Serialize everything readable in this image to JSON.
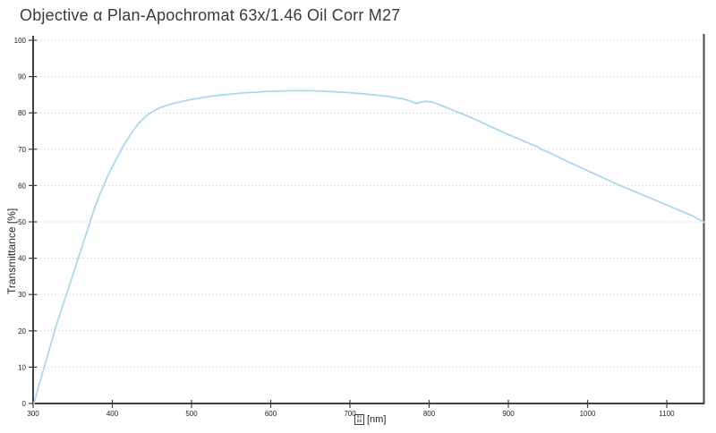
{
  "title": "Objective α Plan-Apochromat 63x/1.46 Oil Corr M27",
  "colors": {
    "background": "#ffffff",
    "title_text": "#3a3a3a",
    "axis": "#3f3f3f",
    "right_border": "#4a4a4a",
    "grid": "#c3c3c3",
    "tick_text": "#222222",
    "curve": "#a9d8f0"
  },
  "chart_data": {
    "type": "line",
    "title": "Objective α Plan-Apochromat 63x/1.46 Oil Corr M27",
    "ylabel": "Transmittance [%]",
    "xlabel_unit": "[nm]",
    "xlabel_glyph": {
      "type": "missing-glyph-box",
      "hex_rows": [
        "03",
        "BB"
      ],
      "unicode": "U+03BB"
    },
    "xlim": [
      300,
      1150
    ],
    "ylim": [
      0,
      100
    ],
    "x_ticks": [
      300,
      400,
      500,
      600,
      700,
      800,
      900,
      1000,
      1100
    ],
    "y_ticks": [
      0,
      10,
      20,
      30,
      40,
      50,
      60,
      70,
      80,
      90,
      100
    ],
    "grid": "horizontal-dotted",
    "legend": "none",
    "series": [
      {
        "name": "transmittance",
        "color": "#a9d8f0",
        "points": [
          [
            301,
            0
          ],
          [
            306,
            4
          ],
          [
            312,
            8.5
          ],
          [
            318,
            13
          ],
          [
            324,
            17.5
          ],
          [
            330,
            22
          ],
          [
            336,
            26
          ],
          [
            342,
            30
          ],
          [
            348,
            34
          ],
          [
            354,
            38
          ],
          [
            360,
            42
          ],
          [
            366,
            46
          ],
          [
            372,
            50
          ],
          [
            378,
            54
          ],
          [
            384,
            57.5
          ],
          [
            390,
            60.5
          ],
          [
            396,
            63.5
          ],
          [
            402,
            66
          ],
          [
            408,
            68.5
          ],
          [
            414,
            71
          ],
          [
            420,
            73
          ],
          [
            426,
            75
          ],
          [
            432,
            76.8
          ],
          [
            438,
            78.2
          ],
          [
            444,
            79.4
          ],
          [
            450,
            80.3
          ],
          [
            458,
            81.2
          ],
          [
            466,
            81.9
          ],
          [
            475,
            82.5
          ],
          [
            485,
            83
          ],
          [
            495,
            83.5
          ],
          [
            508,
            84
          ],
          [
            522,
            84.5
          ],
          [
            536,
            84.9
          ],
          [
            550,
            85.2
          ],
          [
            565,
            85.5
          ],
          [
            580,
            85.7
          ],
          [
            595,
            85.9
          ],
          [
            610,
            86
          ],
          [
            628,
            86.1
          ],
          [
            648,
            86.1
          ],
          [
            665,
            86
          ],
          [
            682,
            85.8
          ],
          [
            698,
            85.6
          ],
          [
            714,
            85.3
          ],
          [
            728,
            85
          ],
          [
            742,
            84.7
          ],
          [
            755,
            84.3
          ],
          [
            766,
            83.9
          ],
          [
            774,
            83.4
          ],
          [
            780,
            82.9
          ],
          [
            785,
            82.6
          ],
          [
            790,
            83
          ],
          [
            796,
            83.2
          ],
          [
            802,
            83.1
          ],
          [
            809,
            82.6
          ],
          [
            817,
            81.9
          ],
          [
            825,
            81.2
          ],
          [
            833,
            80.5
          ],
          [
            841,
            79.8
          ],
          [
            851,
            78.9
          ],
          [
            861,
            77.9
          ],
          [
            873,
            76.7
          ],
          [
            885,
            75.5
          ],
          [
            897,
            74.3
          ],
          [
            909,
            73.2
          ],
          [
            921,
            72.1
          ],
          [
            931,
            71.2
          ],
          [
            937,
            70.7
          ],
          [
            941,
            70
          ],
          [
            947,
            69.5
          ],
          [
            955,
            68.7
          ],
          [
            965,
            67.6
          ],
          [
            977,
            66.4
          ],
          [
            989,
            65.2
          ],
          [
            1001,
            64
          ],
          [
            1013,
            62.8
          ],
          [
            1025,
            61.6
          ],
          [
            1037,
            60.4
          ],
          [
            1049,
            59.3
          ],
          [
            1061,
            58.2
          ],
          [
            1073,
            57.1
          ],
          [
            1085,
            56
          ],
          [
            1097,
            54.9
          ],
          [
            1109,
            53.8
          ],
          [
            1121,
            52.7
          ],
          [
            1133,
            51.6
          ],
          [
            1142,
            50.5
          ],
          [
            1148,
            49.8
          ]
        ]
      }
    ]
  }
}
